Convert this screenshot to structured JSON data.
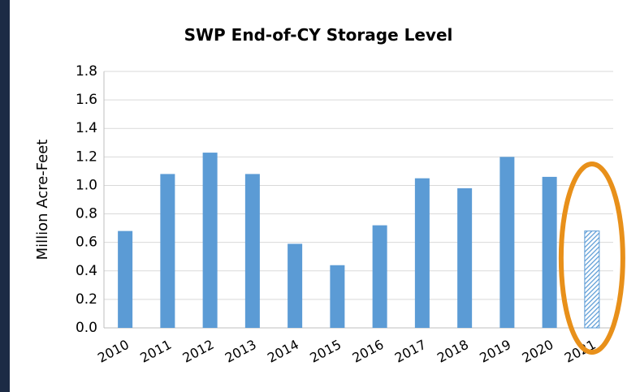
{
  "chart_data": {
    "type": "bar",
    "title": "SWP End-of-CY Storage Level",
    "y_label": "Million Acre-Feet",
    "categories": [
      "2010",
      "2011",
      "2012",
      "2013",
      "2014",
      "2015",
      "2016",
      "2017",
      "2018",
      "2019",
      "2020",
      "2021"
    ],
    "values": [
      0.68,
      1.08,
      1.23,
      1.08,
      0.59,
      0.44,
      0.72,
      1.05,
      0.98,
      1.2,
      1.06,
      0.68
    ],
    "hatched": [
      false,
      false,
      false,
      false,
      false,
      false,
      false,
      false,
      false,
      false,
      false,
      true
    ],
    "color": "#5b9bd5",
    "highlight_color": "#e8901a",
    "ylim": [
      0,
      1.8
    ],
    "yticks": [
      {
        "value": 0,
        "label": "0.0"
      },
      0.2,
      0.4,
      0.6,
      0.8,
      {
        "value": 1,
        "label": "1.0"
      },
      1.2,
      1.4,
      1.6,
      1.8
    ],
    "grid": true
  }
}
